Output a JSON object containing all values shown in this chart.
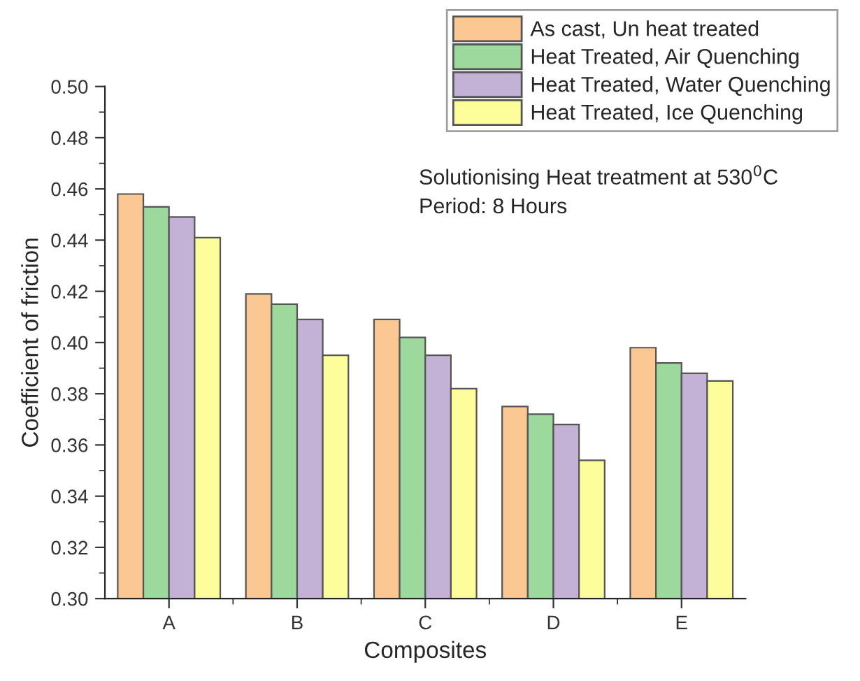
{
  "chart_data": {
    "type": "bar",
    "xlabel": "Composites",
    "ylabel": "Coefficient of friction",
    "categories": [
      "A",
      "B",
      "C",
      "D",
      "E"
    ],
    "series": [
      {
        "name": "As cast, Un heat treated",
        "color": "#fbc793",
        "values": [
          0.458,
          0.419,
          0.409,
          0.375,
          0.398
        ]
      },
      {
        "name": "Heat Treated, Air Quenching",
        "color": "#9dd89c",
        "values": [
          0.453,
          0.415,
          0.402,
          0.372,
          0.392
        ]
      },
      {
        "name": "Heat Treated, Water Quenching",
        "color": "#c3b2d6",
        "values": [
          0.449,
          0.409,
          0.395,
          0.368,
          0.388
        ]
      },
      {
        "name": "Heat Treated, Ice Quenching",
        "color": "#fefd9b",
        "values": [
          0.441,
          0.395,
          0.382,
          0.354,
          0.385
        ]
      }
    ],
    "ylim": [
      0.3,
      0.5
    ],
    "yticks": [
      {
        "value": 0.3,
        "label": "0.30"
      },
      {
        "value": 0.32,
        "label": "0.32"
      },
      {
        "value": 0.34,
        "label": "0.34"
      },
      {
        "value": 0.36,
        "label": "0.36"
      },
      {
        "value": 0.38,
        "label": "0.38"
      },
      {
        "value": 0.4,
        "label": "0.40"
      },
      {
        "value": 0.42,
        "label": "0.42"
      },
      {
        "value": 0.44,
        "label": "0.44"
      },
      {
        "value": 0.46,
        "label": "0.46"
      },
      {
        "value": 0.48,
        "label": "0.48"
      },
      {
        "value": 0.5,
        "label": "0.50"
      }
    ],
    "annotations": [
      "Solutionising Heat treatment at 530$^{0}$C",
      "Period: 8 Hours"
    ],
    "legend": "top right",
    "grid": false
  }
}
